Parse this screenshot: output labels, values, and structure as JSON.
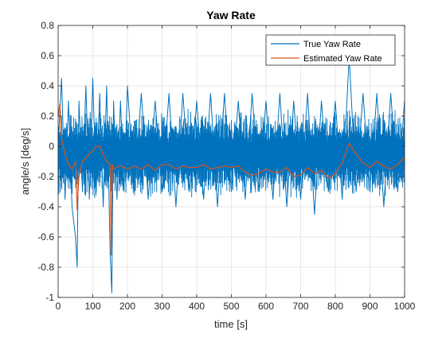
{
  "chart_data": {
    "type": "line",
    "title": "Yaw Rate",
    "xlabel": "time [s]",
    "ylabel": "angle/s [deg/s]",
    "xlim": [
      0,
      1000
    ],
    "ylim": [
      -1,
      0.8
    ],
    "x_ticks": [
      0,
      100,
      200,
      300,
      400,
      500,
      600,
      700,
      800,
      900,
      1000
    ],
    "y_ticks": [
      -1,
      -0.8,
      -0.6,
      -0.4,
      -0.2,
      0,
      0.2,
      0.4,
      0.6,
      0.8
    ],
    "x_tick_labels": [
      "0",
      "100",
      "200",
      "300",
      "400",
      "500",
      "600",
      "700",
      "800",
      "900",
      "1000"
    ],
    "y_tick_labels": [
      "-1",
      "-0.8",
      "-0.6",
      "-0.4",
      "-0.2",
      "0",
      "0.2",
      "0.4",
      "0.6",
      "0.8"
    ],
    "grid": true,
    "legend_position": "top-right",
    "series": [
      {
        "name": "True Yaw Rate",
        "color": "#0072BD",
        "x": [
          0,
          10,
          20,
          30,
          40,
          50,
          55,
          60,
          70,
          80,
          90,
          100,
          110,
          120,
          130,
          140,
          150,
          155,
          160,
          170,
          180,
          190,
          200,
          220,
          240,
          260,
          280,
          300,
          320,
          340,
          360,
          380,
          400,
          420,
          440,
          460,
          480,
          500,
          520,
          540,
          560,
          580,
          600,
          620,
          640,
          660,
          680,
          700,
          720,
          740,
          760,
          780,
          800,
          820,
          840,
          860,
          880,
          900,
          920,
          940,
          960,
          980,
          1000
        ],
        "y": [
          0.0,
          0.45,
          -0.35,
          0.3,
          -0.4,
          -0.6,
          -0.8,
          0.3,
          -0.3,
          0.4,
          -0.35,
          0.45,
          -0.3,
          0.35,
          -0.4,
          0.4,
          -0.7,
          -0.97,
          0.3,
          -0.35,
          0.3,
          -0.3,
          0.4,
          -0.3,
          0.35,
          -0.35,
          0.3,
          -0.3,
          0.35,
          -0.4,
          0.35,
          -0.3,
          0.3,
          -0.35,
          0.35,
          -0.4,
          0.35,
          -0.3,
          0.3,
          -0.35,
          0.35,
          -0.3,
          0.3,
          -0.35,
          0.35,
          -0.4,
          0.3,
          -0.35,
          0.35,
          -0.45,
          0.3,
          -0.3,
          0.3,
          -0.35,
          0.6,
          -0.3,
          0.35,
          -0.3,
          0.35,
          -0.4,
          0.35,
          -0.3,
          0.3
        ]
      },
      {
        "name": "Estimated Yaw Rate",
        "color": "#D95319",
        "x": [
          0,
          5,
          10,
          20,
          30,
          40,
          50,
          55,
          60,
          70,
          80,
          90,
          100,
          110,
          120,
          130,
          140,
          150,
          153,
          156,
          160,
          170,
          180,
          190,
          200,
          220,
          240,
          260,
          280,
          300,
          320,
          340,
          360,
          380,
          400,
          420,
          440,
          460,
          480,
          500,
          520,
          540,
          560,
          580,
          600,
          620,
          640,
          660,
          680,
          700,
          720,
          740,
          760,
          780,
          800,
          820,
          840,
          860,
          880,
          900,
          920,
          940,
          960,
          980,
          1000
        ],
        "y": [
          0.2,
          0.28,
          0.05,
          -0.05,
          -0.12,
          -0.15,
          -0.1,
          -0.42,
          -0.2,
          -0.1,
          -0.08,
          -0.05,
          -0.03,
          0.0,
          0.0,
          -0.05,
          -0.1,
          -0.12,
          -0.72,
          -0.12,
          -0.15,
          -0.14,
          -0.13,
          -0.14,
          -0.15,
          -0.13,
          -0.15,
          -0.12,
          -0.16,
          -0.12,
          -0.12,
          -0.15,
          -0.13,
          -0.14,
          -0.14,
          -0.12,
          -0.15,
          -0.14,
          -0.13,
          -0.14,
          -0.13,
          -0.17,
          -0.19,
          -0.18,
          -0.15,
          -0.17,
          -0.17,
          -0.14,
          -0.2,
          -0.19,
          -0.14,
          -0.18,
          -0.16,
          -0.21,
          -0.18,
          -0.11,
          0.02,
          -0.05,
          -0.11,
          -0.14,
          -0.1,
          -0.13,
          -0.15,
          -0.12,
          -0.07
        ]
      }
    ]
  }
}
